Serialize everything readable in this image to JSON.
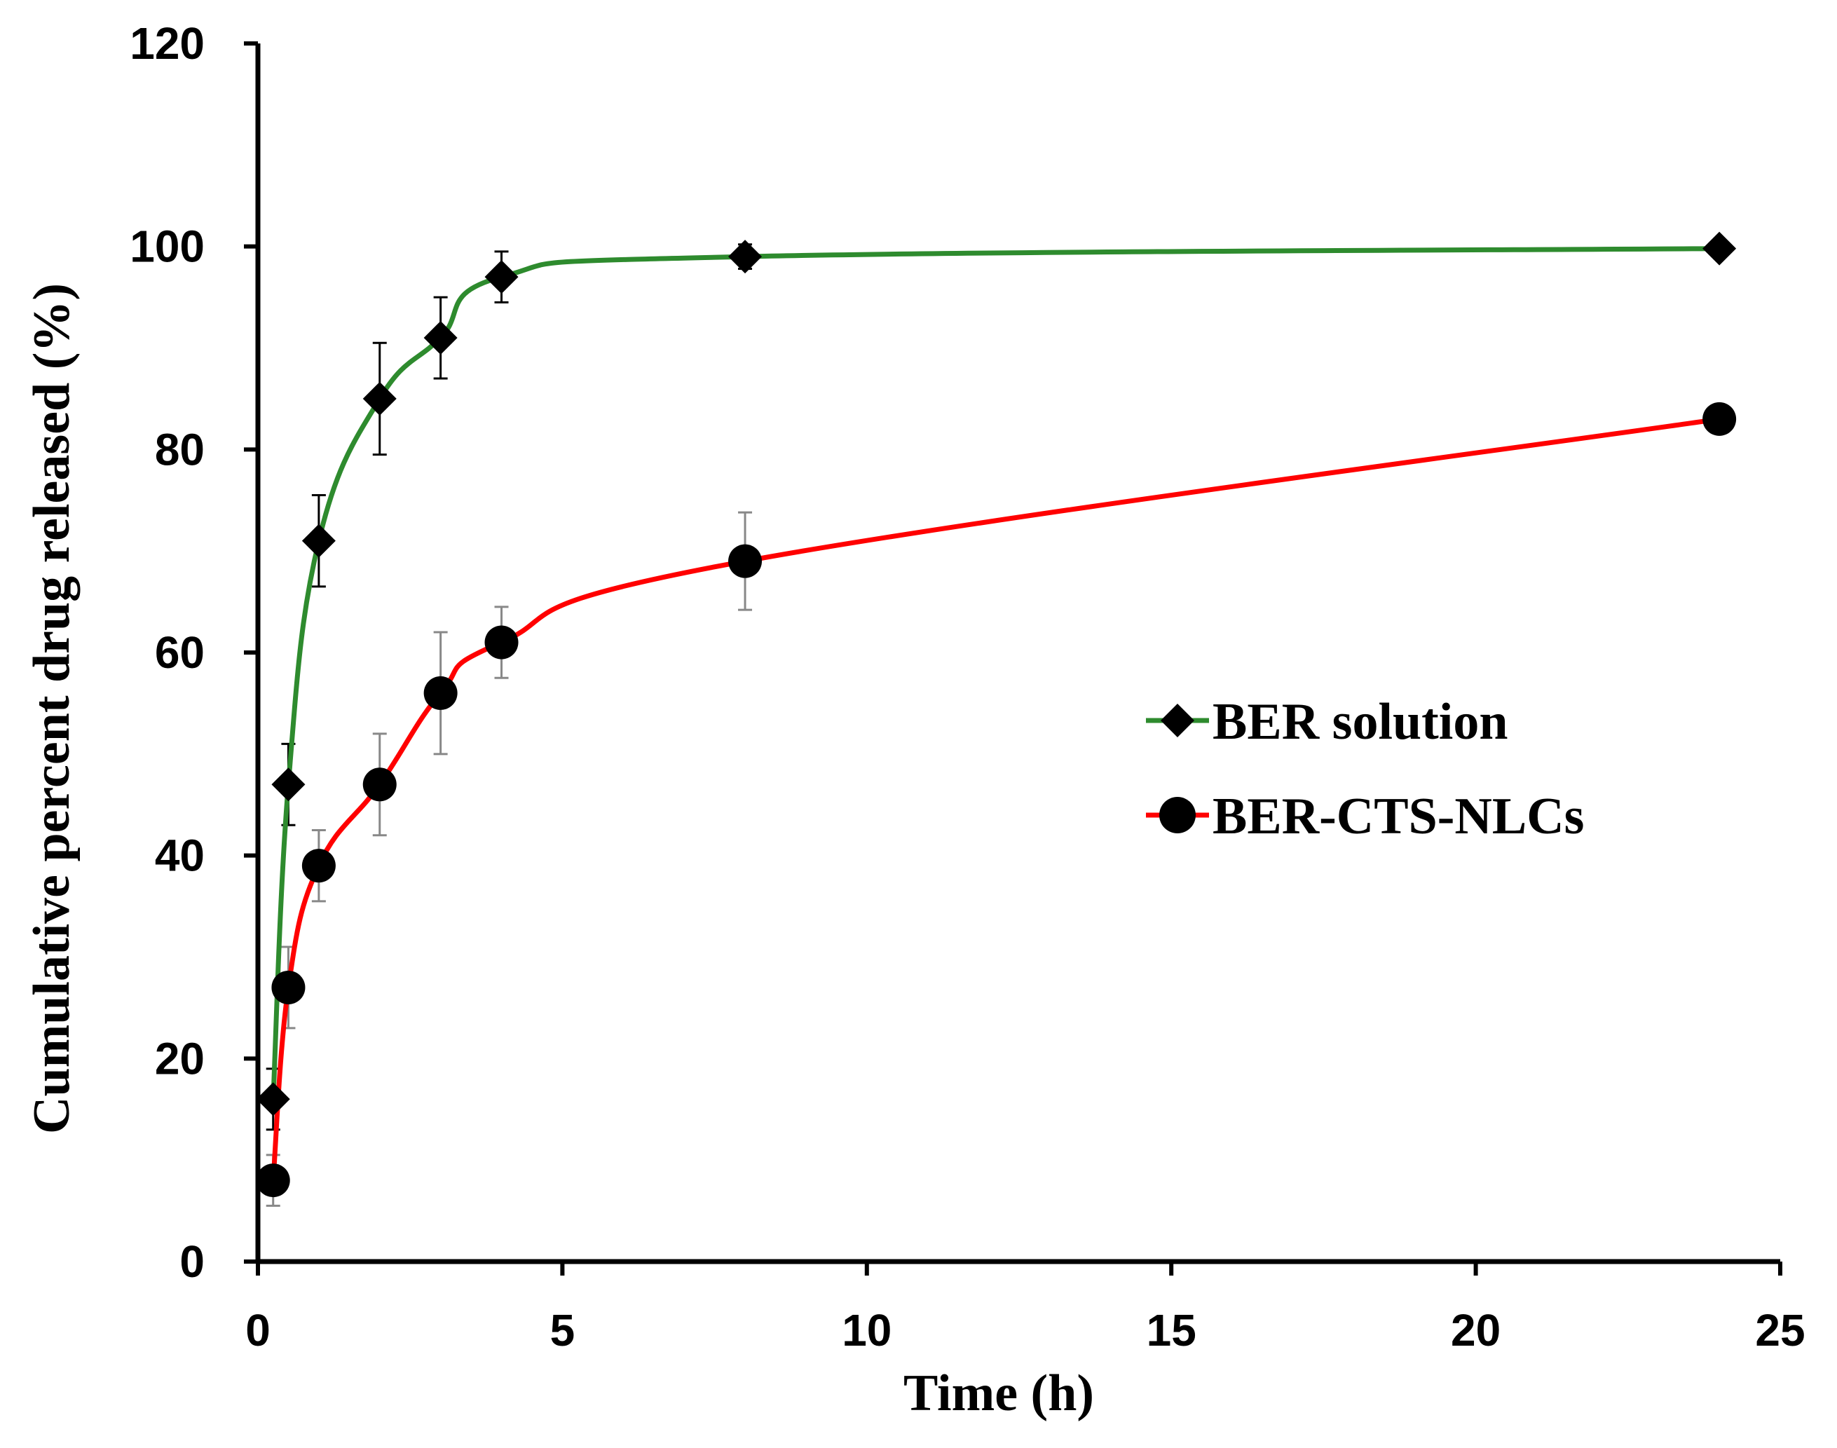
{
  "chart_data": {
    "type": "line",
    "title": "",
    "xlabel": "Time (h)",
    "ylabel": "Cumulative percent drug released (%)",
    "xlim": [
      0,
      25
    ],
    "ylim": [
      0,
      120
    ],
    "xticks": [
      0,
      5,
      10,
      15,
      20,
      25
    ],
    "yticks": [
      0,
      20,
      40,
      60,
      80,
      100,
      120
    ],
    "grid": false,
    "legend_position": "center-right",
    "series": [
      {
        "name": "BER solution",
        "color": "#2e8b2e",
        "marker": "diamond",
        "x": [
          0.25,
          0.5,
          1,
          2,
          3,
          4,
          8,
          24
        ],
        "y": [
          16,
          47,
          71,
          85,
          91,
          97,
          99,
          99.8
        ],
        "error": [
          3,
          4,
          4.5,
          5.5,
          4,
          2.5,
          1.2,
          0.5
        ]
      },
      {
        "name": "BER-CTS-NLCs",
        "color": "#ff0000",
        "marker": "circle",
        "x": [
          0.25,
          0.5,
          1,
          2,
          3,
          4,
          8,
          24
        ],
        "y": [
          8,
          27,
          39,
          47,
          56,
          61,
          69,
          83
        ],
        "error": [
          2.5,
          4,
          3.5,
          5,
          6,
          3.5,
          4.8,
          0.8
        ]
      }
    ]
  }
}
